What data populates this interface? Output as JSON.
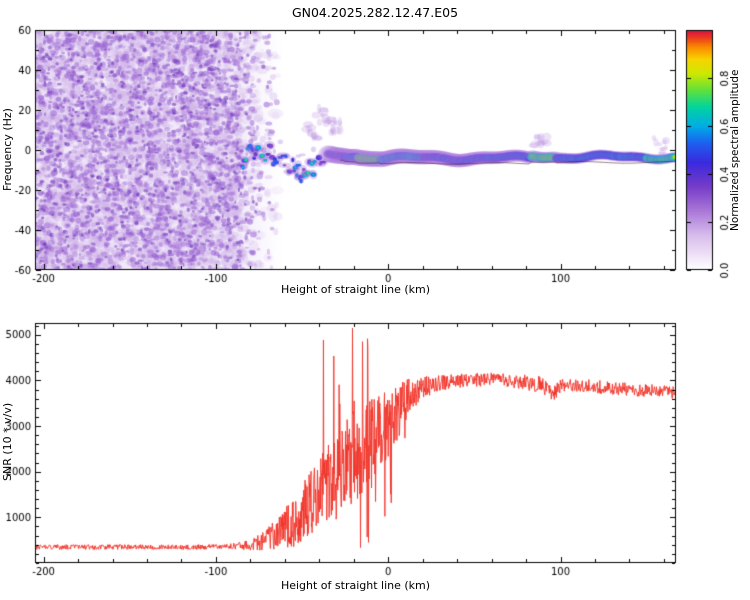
{
  "title": "GN04.2025.282.12.47.E05",
  "chart_data": [
    {
      "type": "heatmap",
      "xlabel": "Height of straight line (km)",
      "ylabel": "Frequency (Hz)",
      "xlim": [
        -205,
        167
      ],
      "ylim": [
        -60,
        60
      ],
      "xticks": [
        -200,
        -100,
        0,
        100
      ],
      "yticks": [
        -60,
        -40,
        -20,
        0,
        20,
        40,
        60
      ],
      "x_minor_step": 20,
      "y_minor_step": 10,
      "colorbar": {
        "label": "Normalized spectral amplitude",
        "ticks": [
          0,
          0.2,
          0.4,
          0.6,
          0.8
        ],
        "range": [
          0,
          1
        ]
      },
      "colormap": [
        [
          0,
          255,
          255,
          255
        ],
        [
          0.05,
          243,
          233,
          248
        ],
        [
          0.15,
          214,
          186,
          235
        ],
        [
          0.25,
          168,
          118,
          215
        ],
        [
          0.35,
          118,
          60,
          200
        ],
        [
          0.45,
          58,
          42,
          222
        ],
        [
          0.53,
          30,
          95,
          240
        ],
        [
          0.6,
          0,
          172,
          230
        ],
        [
          0.68,
          0,
          212,
          160
        ],
        [
          0.75,
          95,
          225,
          60
        ],
        [
          0.82,
          205,
          232,
          0
        ],
        [
          0.88,
          247,
          212,
          0
        ],
        [
          0.93,
          250,
          140,
          0
        ],
        [
          0.97,
          236,
          58,
          30
        ],
        [
          1,
          214,
          18,
          70
        ]
      ],
      "noise_region": {
        "x_min": -205,
        "x_max": -85,
        "fade_to": -62,
        "freq_min": -60,
        "freq_max": 60,
        "description": "dense purple speckle noise across all frequencies"
      },
      "scatter_trace": {
        "x_min": -85,
        "x_max": -35,
        "freq_center": -6,
        "freq_wander": 5.5,
        "freq_jitter": 4.5,
        "amp_min": 0.3,
        "amp_max": 0.65
      },
      "band_trace": {
        "halo_hz": 5,
        "segments": [
          [
            -35,
            -25,
            -2.5,
            0.6
          ],
          [
            -25,
            -18,
            -3,
            0.72
          ],
          [
            -18,
            -5,
            -3.5,
            0.95
          ],
          [
            -5,
            20,
            -4,
            0.78
          ],
          [
            20,
            55,
            -4,
            0.66
          ],
          [
            55,
            83,
            -4,
            0.68
          ],
          [
            83,
            97,
            -3,
            0.9
          ],
          [
            97,
            130,
            -3.5,
            0.7
          ],
          [
            130,
            150,
            -3.5,
            0.72
          ],
          [
            150,
            167,
            -3.5,
            0.85
          ]
        ]
      },
      "puffs": [
        [
          -38,
          18
        ],
        [
          -44,
          9
        ],
        [
          -30,
          12
        ],
        [
          88,
          5
        ],
        [
          158,
          2
        ]
      ]
    },
    {
      "type": "line",
      "xlabel": "Height of straight line (km)",
      "ylabel": "SNR (10 * v/v)",
      "xlim": [
        -205,
        167
      ],
      "ylim": [
        0,
        5260
      ],
      "xticks": [
        -200,
        -100,
        0,
        100
      ],
      "yticks": [
        1000,
        2000,
        3000,
        4000,
        5000
      ],
      "x_minor_step": 20,
      "y_minor_step": 200,
      "series": [
        {
          "name": "SNR",
          "color": "#f03228",
          "anchors": [
            [
              -205,
              350
            ],
            [
              -150,
              350
            ],
            [
              -120,
              345
            ],
            [
              -100,
              355
            ],
            [
              -85,
              380
            ],
            [
              -75,
              450
            ],
            [
              -65,
              620
            ],
            [
              -55,
              900
            ],
            [
              -48,
              1200
            ],
            [
              -42,
              1500
            ],
            [
              -36,
              1700
            ],
            [
              -30,
              1900
            ],
            [
              -25,
              2100
            ],
            [
              -20,
              2300
            ],
            [
              -15,
              2500
            ],
            [
              -10,
              2700
            ],
            [
              -5,
              2900
            ],
            [
              0,
              3100
            ],
            [
              5,
              3300
            ],
            [
              10,
              3550
            ],
            [
              15,
              3750
            ],
            [
              20,
              3850
            ],
            [
              30,
              3950
            ],
            [
              45,
              4000
            ],
            [
              60,
              4020
            ],
            [
              75,
              3980
            ],
            [
              88,
              3920
            ],
            [
              95,
              3700
            ],
            [
              100,
              3880
            ],
            [
              110,
              3900
            ],
            [
              120,
              3870
            ],
            [
              130,
              3830
            ],
            [
              140,
              3800
            ],
            [
              150,
              3790
            ],
            [
              160,
              3760
            ],
            [
              167,
              3740
            ]
          ]
        }
      ],
      "noise_profile": [
        [
          -205,
          55
        ],
        [
          -95,
          55
        ],
        [
          -85,
          90
        ],
        [
          -75,
          180
        ],
        [
          -65,
          350
        ],
        [
          -55,
          550
        ],
        [
          -45,
          750
        ],
        [
          -38,
          850
        ],
        [
          -30,
          950
        ],
        [
          -22,
          1100
        ],
        [
          -15,
          1000
        ],
        [
          -8,
          900
        ],
        [
          -2,
          800
        ],
        [
          4,
          650
        ],
        [
          10,
          480
        ],
        [
          16,
          330
        ],
        [
          24,
          220
        ],
        [
          35,
          160
        ],
        [
          60,
          150
        ],
        [
          90,
          180
        ],
        [
          100,
          150
        ],
        [
          167,
          140
        ]
      ],
      "spike": {
        "x": -21,
        "y": 5150
      }
    }
  ]
}
